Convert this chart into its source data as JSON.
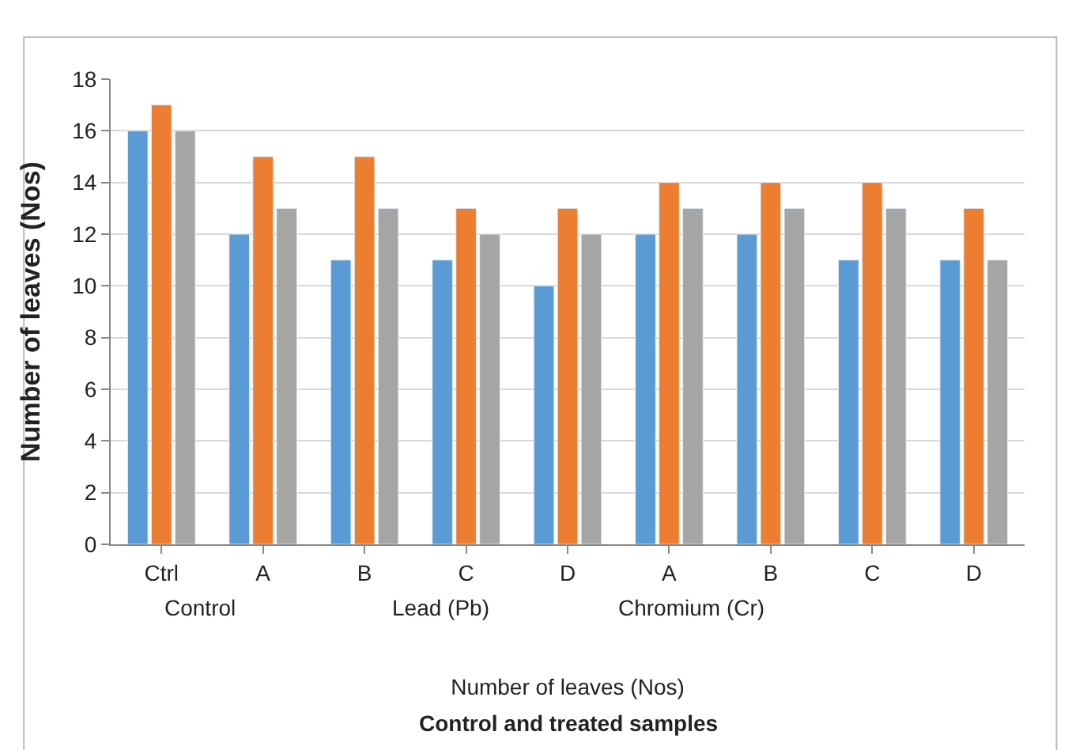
{
  "chart_data": {
    "type": "bar",
    "xlabel": "Number of leaves (Nos)",
    "ylabel": "Number of leaves (Nos)",
    "categories": [
      "Ctrl",
      "A",
      "B",
      "C",
      "D",
      "A",
      "B",
      "C",
      "D"
    ],
    "series": [
      {
        "color": "#5b9bd5",
        "values": [
          16,
          12,
          11,
          11,
          10,
          12,
          12,
          11,
          11
        ]
      },
      {
        "color": "#ed7d31",
        "values": [
          17,
          15,
          15,
          13,
          13,
          14,
          14,
          14,
          13
        ]
      },
      {
        "color": "#a5a5a5",
        "values": [
          16,
          13,
          13,
          12,
          12,
          13,
          13,
          13,
          11
        ]
      }
    ],
    "ylim": [
      0,
      18
    ],
    "yticks": [
      0,
      2,
      4,
      6,
      8,
      10,
      12,
      14,
      16,
      18
    ],
    "grid": "y",
    "annotations": [
      "Control",
      "Lead (Pb)",
      "Chromium (Cr)",
      "Control and treated samples"
    ]
  }
}
